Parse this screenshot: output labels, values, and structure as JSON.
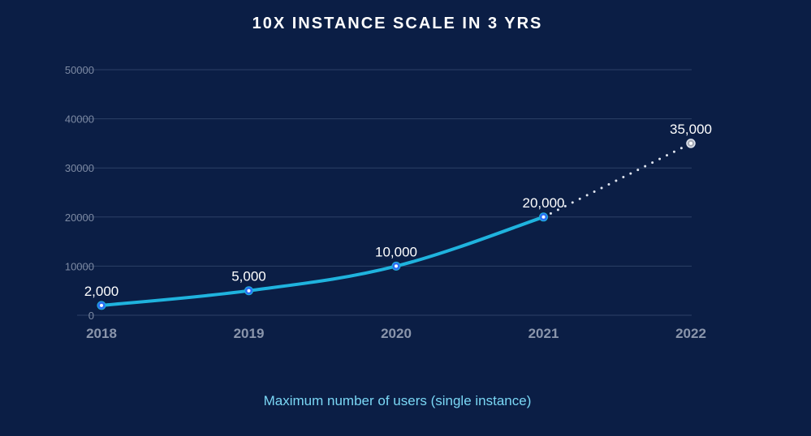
{
  "colors": {
    "background": "#0b1e45",
    "title": "#ffffff",
    "grid": "#2c4066",
    "ytick": "#7d8aa3",
    "xtick": "#8a95ab",
    "line": "#1fb3de",
    "projection": "#dfe4ee",
    "point_fill": "#2a6df4",
    "projected_point_fill": "#a9adb8",
    "label": "#ffffff",
    "caption": "#7ad7f5"
  },
  "chart_data": {
    "type": "line",
    "title": "10X INSTANCE SCALE IN 3 YRS",
    "caption": "Maximum number of users (single instance)",
    "xlabel": "",
    "ylabel": "",
    "categories": [
      "2018",
      "2019",
      "2020",
      "2021",
      "2022"
    ],
    "yticks": [
      0,
      10000,
      20000,
      30000,
      40000,
      50000
    ],
    "ylim": [
      0,
      50000
    ],
    "grid": true,
    "series": [
      {
        "style": "solid",
        "points": [
          {
            "x": "2018",
            "y": 2000,
            "label": "2,000"
          },
          {
            "x": "2019",
            "y": 5000,
            "label": "5,000"
          },
          {
            "x": "2020",
            "y": 10000,
            "label": "10,000"
          },
          {
            "x": "2021",
            "y": 20000,
            "label": "20,000"
          }
        ]
      },
      {
        "style": "dotted",
        "projected": true,
        "points": [
          {
            "x": "2021",
            "y": 20000
          },
          {
            "x": "2022",
            "y": 35000,
            "label": "35,000"
          }
        ]
      }
    ]
  }
}
